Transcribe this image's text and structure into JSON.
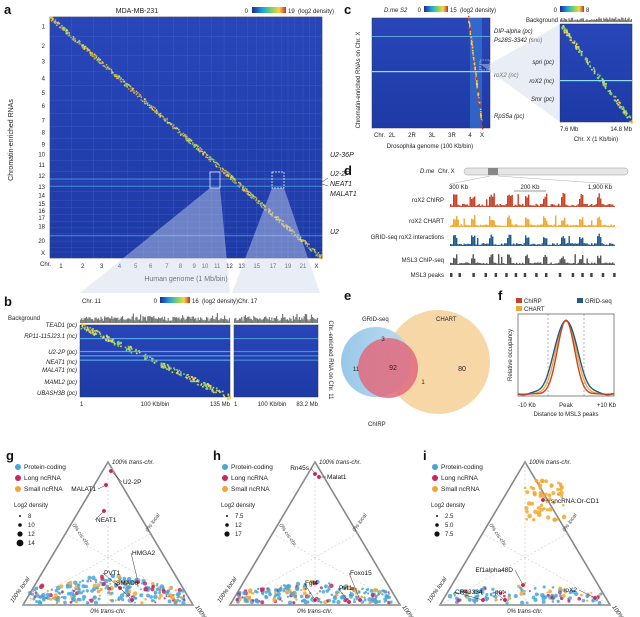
{
  "panels": {
    "a": {
      "letter": "a",
      "title": "MDA-MB-231",
      "colorbar_min": "0",
      "colorbar_max": "19",
      "colorbar_unit": "(log2 density)",
      "y_axis_label": "Chromatin-enriched RNAs",
      "x_axis_label": "Human genome (1 Mb/bin)",
      "chr_label": "Chr.",
      "chromosomes_y": [
        "1",
        "2",
        "3",
        "4",
        "5",
        "6",
        "7",
        "8",
        "9",
        "10",
        "11",
        "12",
        "13",
        "14",
        "15",
        "16",
        "17",
        "18",
        "20",
        "X"
      ],
      "chromosomes_x": [
        "1",
        "2",
        "3",
        "4",
        "5",
        "6",
        "7",
        "8",
        "9",
        "10",
        "11",
        "12",
        "13",
        "15",
        "17",
        "19",
        "21",
        "X"
      ],
      "annotations": [
        "U2-36P",
        "U2-2P",
        "NEAT1",
        "MALAT1",
        "U2"
      ]
    },
    "b": {
      "letter": "b",
      "chr_left": "Chr. 11",
      "chr_right": "Chr. 17",
      "background_label": "Background",
      "colorbar_min": "0",
      "colorbar_max": "16",
      "colorbar_unit": "(log2 density)",
      "genes": [
        "TEAD1 (pc)",
        "RP11-115J23.1 (nc)",
        "U2-2P (pc)",
        "NEAT1 (nc)",
        "MALAT1 (nc)",
        "MAML2 (pc)",
        "UBASH3B (pc)"
      ],
      "side_label": "Chr.-enriched RNA on Chr. 11",
      "x_ticks_left": [
        "1",
        "100 Kb/bin",
        "135 Mb"
      ],
      "x_ticks_right": [
        "1",
        "100 Kb/bin",
        "83.2 Mb"
      ]
    },
    "c": {
      "letter": "c",
      "title": "D.me S2",
      "colorbar_min": "0",
      "colorbar_max": "15",
      "colorbar_unit": "(log2 density)",
      "colorbar2_min": "0",
      "colorbar2_max": "8",
      "background_label": "Background",
      "y_axis_label": "Chromatin-enriched RNAs on Chr. X",
      "x_ticks": [
        "Chr.",
        "2L",
        "2R",
        "3L",
        "3R",
        "4",
        "X"
      ],
      "x_axis_label": "Drosophila genome (100 Kb/bin)",
      "genes_left": [
        "DIP-alpha (pc)",
        "Ps28S-3342 (sno)",
        "roX2 (nc)",
        "RpS5a (pc)"
      ],
      "genes_right": [
        "spri (pc)",
        "roX2 (nc)",
        "Smr (pc)"
      ],
      "right_x_ticks": [
        "7.6 Mb",
        "14.8 Mb"
      ],
      "right_x_label": "Chr. X (1 Kb/bin)"
    },
    "d": {
      "letter": "d",
      "species": "D.me",
      "chr": "Chr. X",
      "scale_left": "300 Kb",
      "scale_mid": "200 Kb",
      "scale_right": "1,900 Kb",
      "tracks": [
        "roX2 ChIRP",
        "roX2 CHART",
        "GRID-seq roX2 interactions",
        "MSL3 ChIP-seq",
        "MSL3 peaks"
      ]
    },
    "e": {
      "letter": "e",
      "set_a": "GRID-seq",
      "set_b": "CHART",
      "set_c": "ChIRP",
      "values": [
        "11",
        "3",
        "92",
        "1",
        "80"
      ]
    },
    "f": {
      "letter": "f",
      "legend": [
        "ChIRP",
        "GRID-seq",
        "CHART"
      ],
      "y_label": "Relative occupancy",
      "x_ticks": [
        "-10 Kb",
        "Peak",
        "+10 Kb"
      ],
      "x_label": "Distance to MSL3 peaks"
    },
    "g": {
      "letter": "g",
      "legend": [
        "Protein-coding",
        "Long ncRNA",
        "Small ncRNA"
      ],
      "size_title": "Log2 density",
      "size_values": [
        "8",
        "10",
        "12",
        "14"
      ],
      "labels": [
        "U2-2P",
        "MALAT1",
        "NEAT1",
        "HMGA2",
        "PVT1",
        "SMAD6"
      ],
      "top": "100% trans-chr.",
      "left": "100% local",
      "right": "100% cis-chr.",
      "bottom": "0% trans-chr.",
      "left_in": "0% cis-chr.",
      "right_in": "0% local"
    },
    "h": {
      "letter": "h",
      "legend": [
        "Protein-coding",
        "Long ncRNA",
        "Small ncRNA"
      ],
      "size_title": "Log2 density",
      "size_values": [
        "7.5",
        "12",
        "17"
      ],
      "labels": [
        "Rn45s",
        "Malat1",
        "Foxo15",
        "Fgf4",
        "Pvt1"
      ],
      "top": "100% trans-chr.",
      "left": "100% local",
      "right": "100% cis-chr.",
      "bottom": "0% trans-chr.",
      "left_in": "0% cis-chr.",
      "right_in": "0% local"
    },
    "i": {
      "letter": "i",
      "legend": [
        "Protein-coding",
        "Long ncRNA",
        "Small ncRNA"
      ],
      "size_title": "Log2 density",
      "size_values": [
        "2.5",
        "5.0",
        "7.5"
      ],
      "labels": [
        "sncRNA:Or-CD1",
        "Ef1alpha48D",
        "CR43334",
        "pnt",
        "roX2"
      ],
      "top": "100% trans-chr.",
      "left": "100% local",
      "right": "100% cis-chr.",
      "bottom": "0% trans-chr.",
      "left_in": "0% cis-chr.",
      "right_in": "0% local"
    }
  },
  "colors": {
    "heat_bg": "#1f3fb0",
    "diag": "#f2d64a",
    "protein": "#4aa6d8",
    "lnc": "#c8285a",
    "small": "#f0a830",
    "chirp": "#c8432a",
    "chart": "#f0a830",
    "grid": "#1f5a8a"
  }
}
